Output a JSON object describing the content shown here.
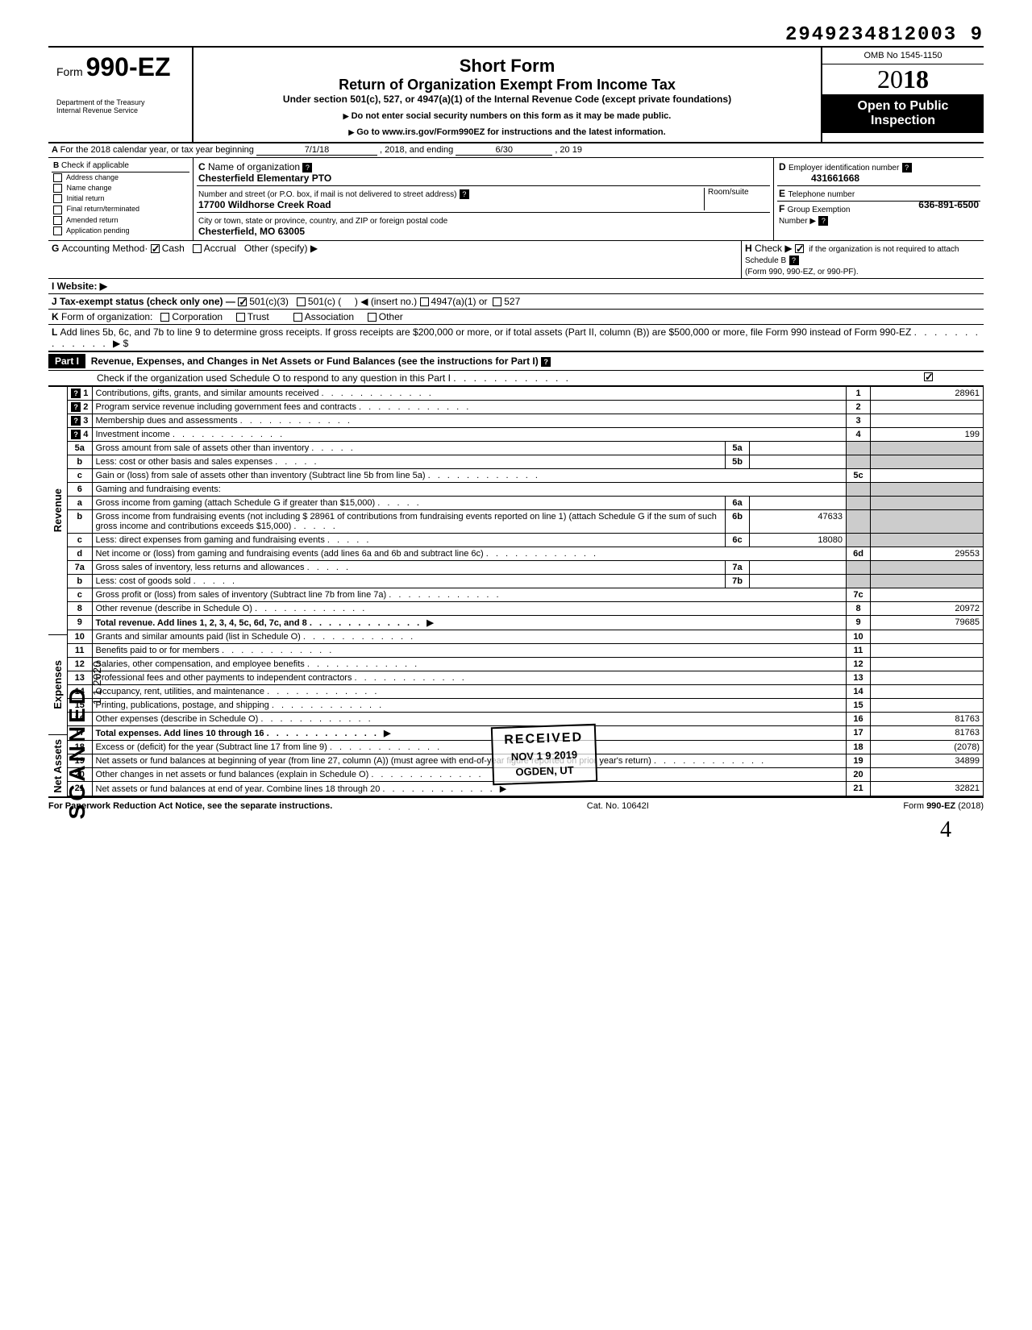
{
  "dln": "2949234812003 9",
  "form": {
    "number_prefix": "Form",
    "number": "990-EZ",
    "title": "Short Form",
    "subtitle": "Return of Organization Exempt From Income Tax",
    "under": "Under section 501(c), 527, or 4947(a)(1) of the Internal Revenue Code (except private foundations)",
    "note1": "Do not enter social security numbers on this form as it may be made public.",
    "note2": "Go to www.irs.gov/Form990EZ for instructions and the latest information.",
    "dept1": "Department of the Treasury",
    "dept2": "Internal Revenue Service",
    "omb": "OMB No 1545-1150",
    "year_prefix": "20",
    "year_bold": "18",
    "inspection1": "Open to Public",
    "inspection2": "Inspection"
  },
  "header": {
    "A": "For the 2018 calendar year, or tax year beginning",
    "A_begin": "7/1/18",
    "A_mid": ", 2018, and ending",
    "A_end": "6/30",
    "A_year": ", 20   19",
    "B": "Check if applicable",
    "B_items": [
      "Address change",
      "Name change",
      "Initial return",
      "Final return/terminated",
      "Amended return",
      "Application pending"
    ],
    "C": "Name of organization",
    "C_val": "Chesterfield Elementary PTO",
    "C_street_label": "Number and street (or P.O. box, if mail is not delivered to street address)",
    "C_street": "17700 Wildhorse Creek Road",
    "C_room": "Room/suite",
    "C_city_label": "City or town, state or province, country, and ZIP or foreign postal code",
    "C_city": "Chesterfield, MO  63005",
    "D": "Employer identification number",
    "D_val": "431661668",
    "E": "Telephone number",
    "E_val": "636-891-6500",
    "F": "Group Exemption",
    "F2": "Number  ▶",
    "G": "Accounting Method·",
    "G_cash": "Cash",
    "G_accrual": "Accrual",
    "G_other": "Other (specify) ▶",
    "H": "Check ▶",
    "H_text": "if the organization is not required to attach Schedule B",
    "H_sub": "(Form 990, 990-EZ, or 990-PF).",
    "I": "Website: ▶",
    "J": "Tax-exempt status (check only one) —",
    "J_501c3": "501(c)(3)",
    "J_501c": "501(c) (",
    "J_insert": ") ◀ (insert no.)",
    "J_4947": "4947(a)(1) or",
    "J_527": "527",
    "K": "Form of organization:",
    "K_items": [
      "Corporation",
      "Trust",
      "Association",
      "Other"
    ],
    "L": "Add lines 5b, 6c, and 7b to line 9 to determine gross receipts. If gross receipts are $200,000 or more, or if total assets (Part II, column (B)) are $500,000 or more, file Form 990 instead of Form 990-EZ",
    "L_arrow": "▶   $"
  },
  "part1": {
    "header_label": "Part I",
    "header_text": "Revenue, Expenses, and Changes in Net Assets or Fund Balances (see the instructions for Part I)",
    "check_text": "Check if the organization used Schedule O to respond to any question in this Part I"
  },
  "sections": {
    "revenue": "Revenue",
    "expenses": "Expenses",
    "netassets": "Net Assets"
  },
  "lines": [
    {
      "n": "1",
      "desc": "Contributions, gifts, grants, and similar amounts received",
      "box": "1",
      "amt": "28961"
    },
    {
      "n": "2",
      "desc": "Program service revenue including government fees and contracts",
      "box": "2",
      "amt": ""
    },
    {
      "n": "3",
      "desc": "Membership dues and assessments",
      "box": "3",
      "amt": ""
    },
    {
      "n": "4",
      "desc": "Investment income",
      "box": "4",
      "amt": "199"
    },
    {
      "n": "5a",
      "desc": "Gross amount from sale of assets other than inventory",
      "sub": "5a",
      "subamt": ""
    },
    {
      "n": "b",
      "desc": "Less: cost or other basis and sales expenses",
      "sub": "5b",
      "subamt": ""
    },
    {
      "n": "c",
      "desc": "Gain or (loss) from sale of assets other than inventory (Subtract line 5b from line 5a)",
      "box": "5c",
      "amt": ""
    },
    {
      "n": "6",
      "desc": "Gaming and fundraising events:"
    },
    {
      "n": "a",
      "desc": "Gross income from gaming (attach Schedule G if greater than $15,000)",
      "sub": "6a",
      "subamt": ""
    },
    {
      "n": "b",
      "desc": "Gross income from fundraising events (not including  $               28961 of contributions from fundraising events reported on line 1) (attach Schedule G if the sum of such gross income and contributions exceeds $15,000)",
      "sub": "6b",
      "subamt": "47633"
    },
    {
      "n": "c",
      "desc": "Less: direct expenses from gaming and fundraising events",
      "sub": "6c",
      "subamt": "18080"
    },
    {
      "n": "d",
      "desc": "Net income or (loss) from gaming and fundraising events (add lines 6a and 6b and subtract line 6c)",
      "box": "6d",
      "amt": "29553"
    },
    {
      "n": "7a",
      "desc": "Gross sales of inventory, less returns and allowances",
      "sub": "7a",
      "subamt": ""
    },
    {
      "n": "b",
      "desc": "Less: cost of goods sold",
      "sub": "7b",
      "subamt": ""
    },
    {
      "n": "c",
      "desc": "Gross profit or (loss) from sales of inventory (Subtract line 7b from line 7a)",
      "box": "7c",
      "amt": ""
    },
    {
      "n": "8",
      "desc": "Other revenue (describe in Schedule O)",
      "box": "8",
      "amt": "20972"
    },
    {
      "n": "9",
      "desc": "Total revenue. Add lines 1, 2, 3, 4, 5c, 6d, 7c, and 8",
      "box": "9",
      "amt": "79685",
      "bold": true
    }
  ],
  "expense_lines": [
    {
      "n": "10",
      "desc": "Grants and similar amounts paid (list in Schedule O)",
      "box": "10",
      "amt": ""
    },
    {
      "n": "11",
      "desc": "Benefits paid to or for members",
      "box": "11",
      "amt": ""
    },
    {
      "n": "12",
      "desc": "Salaries, other compensation, and employee benefits",
      "box": "12",
      "amt": ""
    },
    {
      "n": "13",
      "desc": "Professional fees and other payments to independent contractors",
      "box": "13",
      "amt": ""
    },
    {
      "n": "14",
      "desc": "Occupancy, rent, utilities, and maintenance",
      "box": "14",
      "amt": ""
    },
    {
      "n": "15",
      "desc": "Printing, publications, postage, and shipping",
      "box": "15",
      "amt": ""
    },
    {
      "n": "16",
      "desc": "Other expenses (describe in Schedule O)",
      "box": "16",
      "amt": "81763"
    },
    {
      "n": "17",
      "desc": "Total expenses. Add lines 10 through 16",
      "box": "17",
      "amt": "81763",
      "bold": true
    }
  ],
  "net_lines": [
    {
      "n": "18",
      "desc": "Excess or (deficit) for the year (Subtract line 17 from line 9)",
      "box": "18",
      "amt": "(2078)"
    },
    {
      "n": "19",
      "desc": "Net assets or fund balances at beginning of year (from line 27, column (A)) (must agree with end-of-year figure reported on prior year's return)",
      "box": "19",
      "amt": "34899"
    },
    {
      "n": "20",
      "desc": "Other changes in net assets or fund balances (explain in Schedule O)",
      "box": "20",
      "amt": ""
    },
    {
      "n": "21",
      "desc": "Net assets or fund balances at end of year. Combine lines 18 through 20",
      "box": "21",
      "amt": "32821"
    }
  ],
  "footer": {
    "left": "For Paperwork Reduction Act Notice, see the separate instructions.",
    "mid": "Cat. No. 10642I",
    "right": "Form 990-EZ (2018)"
  },
  "stamp": {
    "received": "RECEIVED",
    "date": "NOV 1 9 2019",
    "loc": "OGDEN, UT",
    "scanned": "SCANNED",
    "scanned_date": "1  1  2020"
  },
  "page_num": "4"
}
